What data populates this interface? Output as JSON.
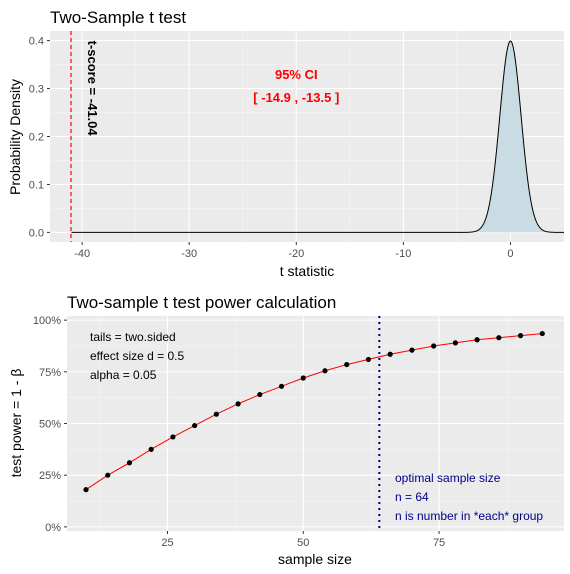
{
  "chart_data": [
    {
      "type": "area",
      "title": "Two-Sample t test",
      "xlabel": "t statistic",
      "ylabel": "Probability Density",
      "xlim": [
        -43,
        5
      ],
      "ylim": [
        -0.02,
        0.42
      ],
      "x_ticks": [
        -40,
        -30,
        -20,
        -10,
        0
      ],
      "x_tick_labels": [
        "-40",
        "-30",
        "-20",
        "-10",
        "0"
      ],
      "y_ticks": [
        0.0,
        0.1,
        0.2,
        0.3,
        0.4
      ],
      "y_tick_labels": [
        "0.0",
        "0.1",
        "0.2",
        "0.3",
        "0.4"
      ],
      "distribution": {
        "name": "t",
        "df": 126,
        "peak": 0.399,
        "x_from": -41,
        "x_to": 5
      },
      "fill_color": "#c9dbe3",
      "t_score": {
        "value": -41.04,
        "label": "t-score = -41.04",
        "color": "#ff0000"
      },
      "ci_annotation": {
        "line1": "95% CI",
        "line2": "[ -14.9 ,  -13.5 ]",
        "x": -20,
        "y": 0.32,
        "color": "#ff0000"
      },
      "grid": true
    },
    {
      "type": "line",
      "title": "Two-sample t test power calculation",
      "xlabel": "sample size",
      "ylabel": "test power = 1 - β",
      "xlim": [
        6.5,
        98
      ],
      "ylim": [
        -0.02,
        1.02
      ],
      "x_ticks": [
        25,
        50,
        75
      ],
      "x_tick_labels": [
        "25",
        "50",
        "75"
      ],
      "y_ticks": [
        0,
        0.25,
        0.5,
        0.75,
        1.0
      ],
      "y_tick_labels": [
        "0%",
        "25%",
        "50%",
        "75%",
        "100%"
      ],
      "x": [
        10,
        14,
        18,
        22,
        26,
        30,
        34,
        38,
        42,
        46,
        50,
        54,
        58,
        62,
        66,
        70,
        74,
        78,
        82,
        86,
        90,
        94
      ],
      "y": [
        0.18,
        0.25,
        0.31,
        0.375,
        0.435,
        0.49,
        0.545,
        0.595,
        0.64,
        0.68,
        0.72,
        0.755,
        0.785,
        0.81,
        0.835,
        0.855,
        0.875,
        0.89,
        0.905,
        0.915,
        0.925,
        0.935
      ],
      "line_color": "#ff0000",
      "point_color": "#000000",
      "vline": {
        "x": 64,
        "color": "#00008b"
      },
      "params_text": [
        "tails = two.sided",
        "effect size d = 0.5",
        "alpha = 0.05"
      ],
      "optimal_text": [
        "optimal sample size",
        "n = 64",
        "n is number in *each* group"
      ],
      "grid": true
    }
  ]
}
